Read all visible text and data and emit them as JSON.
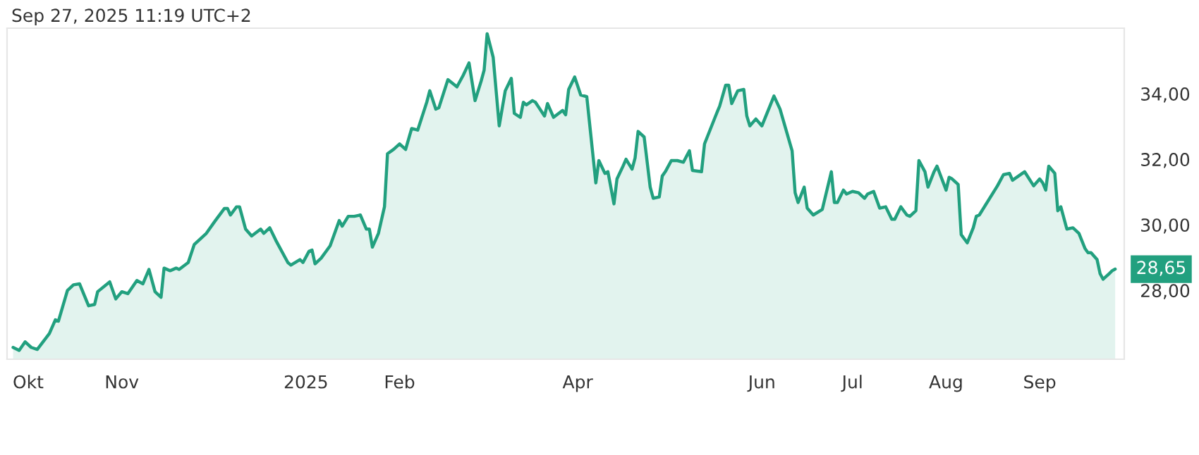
{
  "chart_data": {
    "type": "area",
    "annotations": [
      "Sep 27, 2025 11:19 UTC+2",
      "28,65"
    ],
    "x": [
      "2024-09-26",
      "2024-09-28",
      "2024-09-30",
      "2024-10-02",
      "2024-10-04",
      "2024-10-08",
      "2024-10-10",
      "2024-10-11",
      "2024-10-14",
      "2024-10-16",
      "2024-10-18",
      "2024-10-21",
      "2024-10-23",
      "2024-10-24",
      "2024-10-28",
      "2024-10-30",
      "2024-11-01",
      "2024-11-03",
      "2024-11-06",
      "2024-11-08",
      "2024-11-10",
      "2024-11-12",
      "2024-11-14",
      "2024-11-15",
      "2024-11-17",
      "2024-11-19",
      "2024-11-20",
      "2024-11-23",
      "2024-11-25",
      "2024-11-29",
      "2024-12-02",
      "2024-12-05",
      "2024-12-06",
      "2024-12-07",
      "2024-12-09",
      "2024-12-10",
      "2024-12-12",
      "2024-12-14",
      "2024-12-17",
      "2024-12-18",
      "2024-12-20",
      "2024-12-22",
      "2024-12-26",
      "2024-12-27",
      "2024-12-30",
      "2024-12-31",
      "2025-01-02",
      "2025-01-03",
      "2025-01-04",
      "2025-01-06",
      "2025-01-09",
      "2025-01-12",
      "2025-01-13",
      "2025-01-15",
      "2025-01-17",
      "2025-01-19",
      "2025-01-21",
      "2025-01-22",
      "2025-01-23",
      "2025-01-25",
      "2025-01-27",
      "2025-01-28",
      "2025-01-30",
      "2025-02-01",
      "2025-02-03",
      "2025-02-05",
      "2025-02-07",
      "2025-02-10",
      "2025-02-11",
      "2025-02-13",
      "2025-02-14",
      "2025-02-17",
      "2025-02-20",
      "2025-02-22",
      "2025-02-24",
      "2025-02-26",
      "2025-02-28",
      "2025-03-01",
      "2025-03-02",
      "2025-03-04",
      "2025-03-06",
      "2025-03-08",
      "2025-03-10",
      "2025-03-11",
      "2025-03-13",
      "2025-03-14",
      "2025-03-15",
      "2025-03-17",
      "2025-03-18",
      "2025-03-21",
      "2025-03-22",
      "2025-03-24",
      "2025-03-27",
      "2025-03-28",
      "2025-03-29",
      "2025-03-31",
      "2025-04-02",
      "2025-04-04",
      "2025-04-07",
      "2025-04-08",
      "2025-04-10",
      "2025-04-11",
      "2025-04-13",
      "2025-04-14",
      "2025-04-16",
      "2025-04-17",
      "2025-04-19",
      "2025-04-20",
      "2025-04-21",
      "2025-04-23",
      "2025-04-25",
      "2025-04-26",
      "2025-04-28",
      "2025-04-29",
      "2025-04-30",
      "2025-05-02",
      "2025-05-04",
      "2025-05-06",
      "2025-05-08",
      "2025-05-09",
      "2025-05-12",
      "2025-05-13",
      "2025-05-17",
      "2025-05-18",
      "2025-05-20",
      "2025-05-21",
      "2025-05-22",
      "2025-05-24",
      "2025-05-26",
      "2025-05-27",
      "2025-05-28",
      "2025-05-30",
      "2025-06-01",
      "2025-06-05",
      "2025-06-07",
      "2025-06-11",
      "2025-06-12",
      "2025-06-13",
      "2025-06-15",
      "2025-06-16",
      "2025-06-18",
      "2025-06-21",
      "2025-06-24",
      "2025-06-25",
      "2025-06-26",
      "2025-06-28",
      "2025-06-29",
      "2025-07-01",
      "2025-07-03",
      "2025-07-05",
      "2025-07-06",
      "2025-07-08",
      "2025-07-10",
      "2025-07-12",
      "2025-07-14",
      "2025-07-15",
      "2025-07-17",
      "2025-07-19",
      "2025-07-20",
      "2025-07-22",
      "2025-07-23",
      "2025-07-25",
      "2025-07-26",
      "2025-07-28",
      "2025-07-29",
      "2025-08-01",
      "2025-08-02",
      "2025-08-03",
      "2025-08-05",
      "2025-08-06",
      "2025-08-08",
      "2025-08-10",
      "2025-08-11",
      "2025-08-12",
      "2025-08-18",
      "2025-08-20",
      "2025-08-22",
      "2025-08-23",
      "2025-08-25",
      "2025-08-27",
      "2025-08-30",
      "2025-09-01",
      "2025-09-02",
      "2025-09-03",
      "2025-09-04",
      "2025-09-06",
      "2025-09-07",
      "2025-09-08",
      "2025-09-10",
      "2025-09-12",
      "2025-09-14",
      "2025-09-16",
      "2025-09-17",
      "2025-09-18",
      "2025-09-20",
      "2025-09-21",
      "2025-09-22",
      "2025-09-24",
      "2025-09-25",
      "2025-09-26"
    ],
    "series": [
      {
        "color": "#22a07f",
        "values": [
          26.26,
          26.17,
          26.43,
          26.26,
          26.2,
          26.68,
          27.1,
          27.06,
          28.0,
          28.17,
          28.2,
          27.53,
          27.57,
          27.96,
          28.26,
          27.74,
          27.96,
          27.9,
          28.3,
          28.2,
          28.64,
          27.96,
          27.79,
          28.68,
          28.6,
          28.68,
          28.64,
          28.85,
          29.4,
          29.74,
          30.13,
          30.5,
          30.5,
          30.3,
          30.55,
          30.55,
          29.87,
          29.66,
          29.87,
          29.74,
          29.91,
          29.53,
          28.85,
          28.77,
          28.94,
          28.85,
          29.19,
          29.23,
          28.81,
          28.98,
          29.36,
          30.13,
          29.96,
          30.26,
          30.26,
          30.3,
          29.87,
          29.87,
          29.32,
          29.74,
          30.55,
          32.17,
          32.3,
          32.47,
          32.3,
          32.94,
          32.89,
          33.74,
          34.09,
          33.53,
          33.57,
          34.43,
          34.21,
          34.55,
          34.94,
          33.79,
          34.38,
          34.72,
          35.83,
          35.11,
          33.02,
          34.09,
          34.47,
          33.4,
          33.28,
          33.74,
          33.66,
          33.79,
          33.74,
          33.32,
          33.7,
          33.28,
          33.49,
          33.36,
          34.13,
          34.51,
          33.96,
          33.91,
          31.28,
          31.96,
          31.57,
          31.62,
          30.64,
          31.4,
          31.79,
          32.0,
          31.7,
          32.04,
          32.85,
          32.68,
          31.15,
          30.81,
          30.85,
          31.49,
          31.62,
          31.96,
          31.96,
          31.91,
          32.26,
          31.66,
          31.62,
          32.47,
          33.4,
          33.62,
          34.26,
          34.26,
          33.7,
          34.09,
          34.13,
          33.32,
          33.02,
          33.23,
          33.02,
          33.93,
          33.53,
          32.26,
          30.98,
          30.68,
          31.15,
          30.51,
          30.3,
          30.47,
          31.62,
          30.68,
          30.68,
          31.06,
          30.94,
          31.02,
          30.98,
          30.81,
          30.94,
          31.02,
          30.51,
          30.55,
          30.17,
          30.17,
          30.55,
          30.3,
          30.26,
          30.43,
          31.96,
          31.62,
          31.15,
          31.62,
          31.79,
          31.06,
          31.45,
          31.4,
          31.23,
          29.7,
          29.45,
          29.91,
          30.26,
          30.3,
          31.19,
          31.53,
          31.57,
          31.36,
          31.49,
          31.62,
          31.19,
          31.4,
          31.28,
          31.06,
          31.79,
          31.57,
          30.43,
          30.55,
          29.87,
          29.91,
          29.74,
          29.28,
          29.15,
          29.15,
          28.94,
          28.51,
          28.34,
          28.51,
          28.6,
          28.65
        ]
      }
    ],
    "xlim": [
      "2024-09-24",
      "2025-09-29"
    ],
    "xticks": [
      {
        "value": "2024-10-01",
        "label": "Okt"
      },
      {
        "value": "2024-11-01",
        "label": "Nov"
      },
      {
        "value": "2025-01-01",
        "label": "2025"
      },
      {
        "value": "2025-02-01",
        "label": "Feb"
      },
      {
        "value": "2025-04-01",
        "label": "Apr"
      },
      {
        "value": "2025-06-01",
        "label": "Jun"
      },
      {
        "value": "2025-07-01",
        "label": "Jul"
      },
      {
        "value": "2025-08-01",
        "label": "Aug"
      },
      {
        "value": "2025-09-01",
        "label": "Sep"
      }
    ],
    "ylim": [
      25.9,
      36.0
    ],
    "yticks": [
      {
        "value": 28,
        "label": "28,00"
      },
      {
        "value": 30,
        "label": "30,00"
      },
      {
        "value": 32,
        "label": "32,00"
      },
      {
        "value": 34,
        "label": "34,00"
      }
    ],
    "grid": false,
    "legend": false,
    "marker": "none",
    "line_style": "solid"
  }
}
